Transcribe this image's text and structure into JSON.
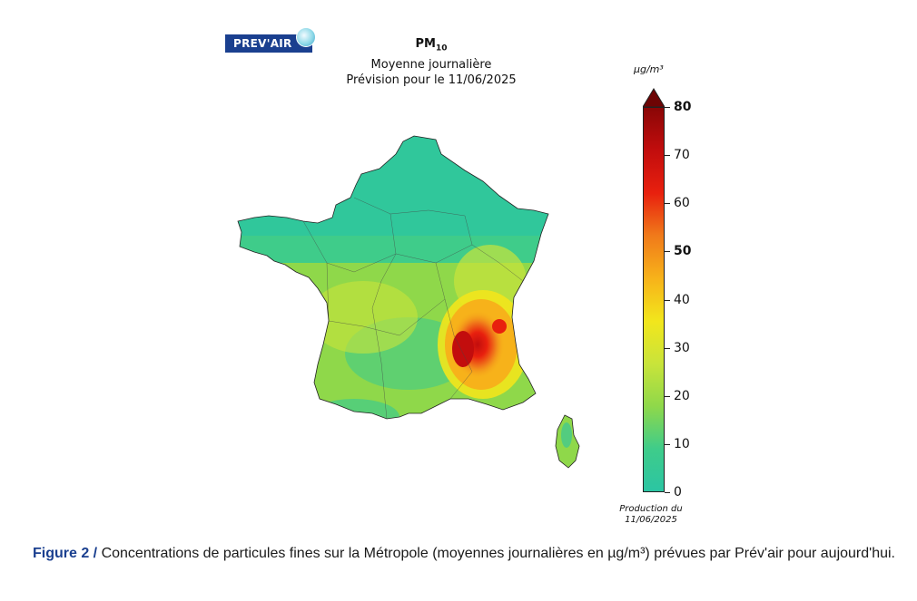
{
  "logo": {
    "text": "PREV'AIR"
  },
  "title": {
    "pollutant": "PM",
    "pollutant_sub": "10",
    "line2": "Moyenne journalière",
    "line3": "Prévision pour le 11/06/2025"
  },
  "colorbar": {
    "unit": "µg/m³",
    "ticks": [
      {
        "value": 80,
        "label": "80",
        "bold": true
      },
      {
        "value": 70,
        "label": "70",
        "bold": false
      },
      {
        "value": 60,
        "label": "60",
        "bold": false
      },
      {
        "value": 50,
        "label": "50",
        "bold": true
      },
      {
        "value": 40,
        "label": "40",
        "bold": false
      },
      {
        "value": 30,
        "label": "30",
        "bold": false
      },
      {
        "value": 20,
        "label": "20",
        "bold": false
      },
      {
        "value": 10,
        "label": "10",
        "bold": false
      },
      {
        "value": 0,
        "label": "0",
        "bold": false
      }
    ],
    "min": 0,
    "max": 80,
    "colors": [
      "#2bc5a3",
      "#3fcc8a",
      "#8fd84a",
      "#c9e43a",
      "#f2e61c",
      "#f7b21a",
      "#f07a1a",
      "#e8200e",
      "#c20d0d",
      "#8a0606"
    ]
  },
  "production": {
    "line1": "Production du",
    "line2": "11/06/2025"
  },
  "caption": {
    "figure": "Figure 2 /",
    "text": " Concentrations de particules fines sur la Métropole (moyennes journalières en µg/m³) prévues par Prév'air pour aujourd'hui."
  }
}
